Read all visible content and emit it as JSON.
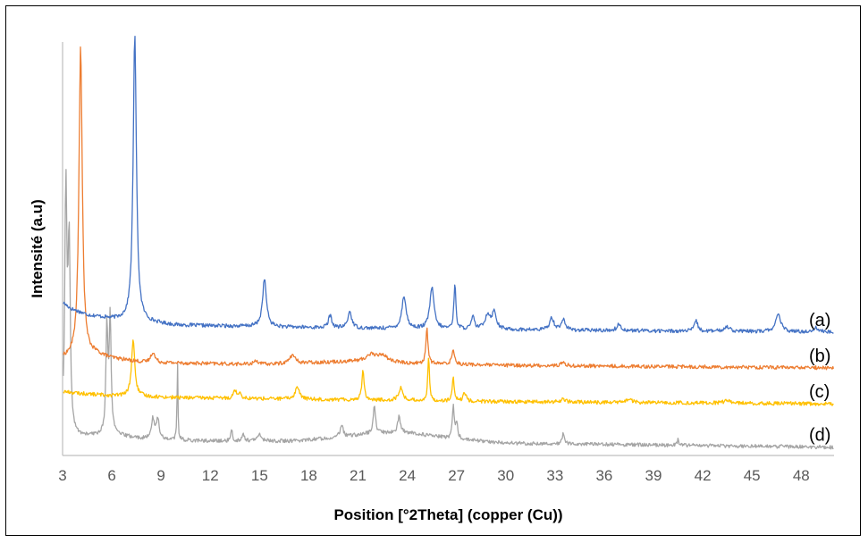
{
  "chart_data": {
    "type": "line",
    "title": "",
    "xlabel": "Position [°2Theta] (copper (Cu))",
    "ylabel": "Intensité (a.u)",
    "xlim": [
      3,
      50
    ],
    "ylim": [
      0,
      100
    ],
    "x_ticks": [
      "3",
      "6",
      "9",
      "12",
      "15",
      "18",
      "21",
      "24",
      "27",
      "30",
      "33",
      "36",
      "39",
      "42",
      "45",
      "48"
    ],
    "grid": false,
    "y_tick_labels_shown": false,
    "series": [
      {
        "name": "(a)",
        "color": "#4472C4",
        "baseline": 30,
        "peaks": [
          [
            7.4,
            69,
            0.12
          ],
          [
            15.3,
            11.5,
            0.14
          ],
          [
            19.3,
            3,
            0.12
          ],
          [
            20.5,
            4,
            0.14
          ],
          [
            23.8,
            8,
            0.15
          ],
          [
            25.5,
            10,
            0.15
          ],
          [
            26.9,
            11,
            0.07
          ],
          [
            28.0,
            3,
            0.1
          ],
          [
            28.9,
            3.5,
            0.2
          ],
          [
            29.3,
            4,
            0.15
          ],
          [
            32.8,
            3,
            0.15
          ],
          [
            33.5,
            2.5,
            0.15
          ],
          [
            36.9,
            1.5,
            0.15
          ],
          [
            41.6,
            2.5,
            0.12
          ],
          [
            43.5,
            1.2,
            0.2
          ],
          [
            46.6,
            4,
            0.2
          ],
          [
            48.9,
            1,
            0.2
          ]
        ],
        "curve": [
          [
            3.0,
            37
          ],
          [
            3.5,
            35.5
          ],
          [
            4.5,
            34
          ],
          [
            6.0,
            33
          ],
          [
            10,
            31.5
          ],
          [
            20,
            30.8
          ],
          [
            30,
            30.4
          ],
          [
            50,
            29.8
          ]
        ]
      },
      {
        "name": "(b)",
        "color": "#ED7D31",
        "baseline": 21.5,
        "peaks": [
          [
            4.1,
            75,
            0.12
          ],
          [
            8.5,
            2.5,
            0.15
          ],
          [
            14.8,
            1,
            0.15
          ],
          [
            17.0,
            2,
            0.2
          ],
          [
            21.8,
            1.5,
            0.3
          ],
          [
            22.5,
            1.5,
            0.3
          ],
          [
            25.2,
            9,
            0.07
          ],
          [
            26.8,
            3.5,
            0.1
          ],
          [
            33.5,
            0.8,
            0.15
          ]
        ],
        "curve": [
          [
            3.0,
            23.5
          ],
          [
            3.8,
            24
          ],
          [
            5.0,
            24.5
          ],
          [
            6.0,
            23.5
          ],
          [
            8,
            22.5
          ],
          [
            15,
            22
          ],
          [
            22,
            23
          ],
          [
            24,
            22.3
          ],
          [
            30,
            21.8
          ],
          [
            50,
            21.2
          ]
        ]
      },
      {
        "name": "(c)",
        "color": "#FFC000",
        "baseline": 13,
        "peaks": [
          [
            7.3,
            13.5,
            0.12
          ],
          [
            13.5,
            2,
            0.1
          ],
          [
            13.8,
            1.5,
            0.1
          ],
          [
            17.3,
            3,
            0.15
          ],
          [
            21.3,
            7.5,
            0.08
          ],
          [
            23.6,
            3,
            0.15
          ],
          [
            25.3,
            10.5,
            0.06
          ],
          [
            26.8,
            5.5,
            0.07
          ],
          [
            27.5,
            2,
            0.1
          ],
          [
            33.5,
            0.8,
            0.15
          ],
          [
            37.5,
            0.8,
            0.2
          ],
          [
            43.5,
            0.8,
            0.2
          ]
        ],
        "curve": [
          [
            3.0,
            15.5
          ],
          [
            4,
            15
          ],
          [
            6,
            14.5
          ],
          [
            10,
            14
          ],
          [
            20,
            13.5
          ],
          [
            30,
            13
          ],
          [
            50,
            12.5
          ]
        ]
      },
      {
        "name": "(d)",
        "color": "#A5A5A5",
        "baseline": 2,
        "peaks": [
          [
            3.2,
            59,
            0.08
          ],
          [
            3.4,
            45,
            0.08
          ],
          [
            5.7,
            26,
            0.07
          ],
          [
            5.9,
            28,
            0.07
          ],
          [
            8.5,
            5,
            0.1
          ],
          [
            8.8,
            5,
            0.1
          ],
          [
            10.0,
            20,
            0.03
          ],
          [
            13.3,
            3,
            0.05
          ],
          [
            14.0,
            1.5,
            0.1
          ],
          [
            15.0,
            1.5,
            0.15
          ],
          [
            20.0,
            3,
            0.1
          ],
          [
            22.0,
            6.5,
            0.08
          ],
          [
            23.5,
            4,
            0.1
          ],
          [
            26.8,
            8,
            0.06
          ],
          [
            27.0,
            4,
            0.08
          ],
          [
            33.5,
            2.5,
            0.08
          ],
          [
            40.5,
            1.5,
            0.05
          ]
        ],
        "curve": [
          [
            3.0,
            4
          ],
          [
            4,
            4.5
          ],
          [
            6,
            5
          ],
          [
            8,
            4
          ],
          [
            12,
            3.5
          ],
          [
            17,
            3.5
          ],
          [
            20,
            4.5
          ],
          [
            22,
            5.5
          ],
          [
            24,
            5.5
          ],
          [
            27,
            4
          ],
          [
            30,
            3
          ],
          [
            40,
            2.5
          ],
          [
            50,
            2
          ]
        ]
      }
    ]
  }
}
